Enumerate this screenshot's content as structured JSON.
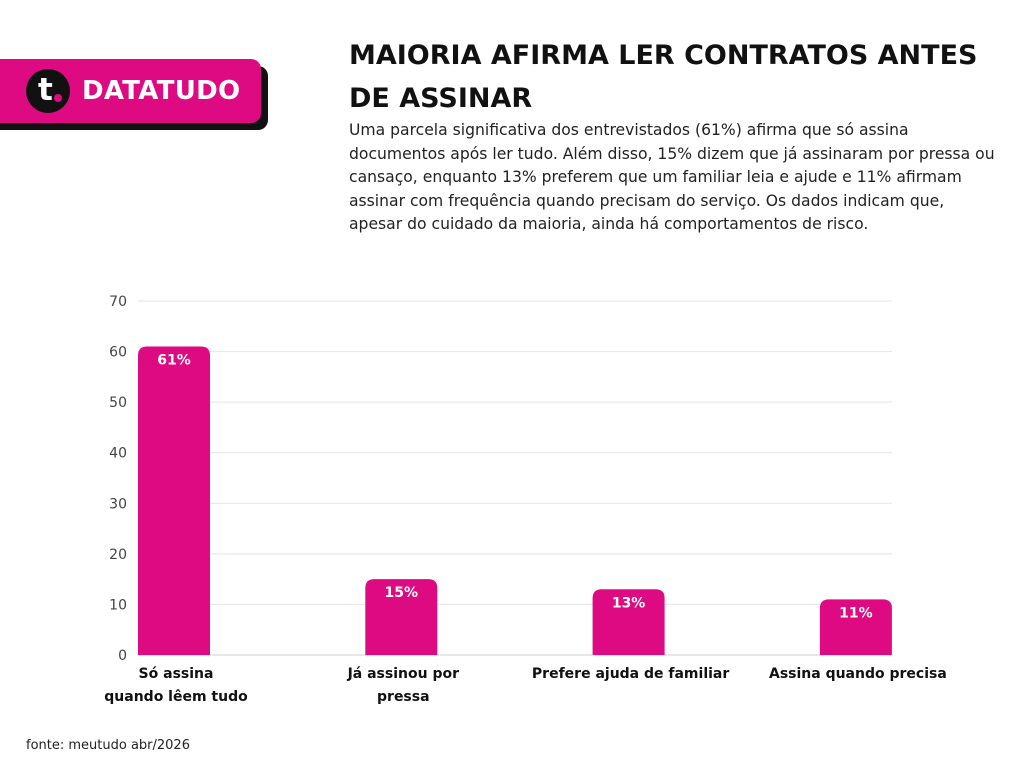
{
  "brand": {
    "name": "DATATUDO",
    "logo_letter": "t",
    "logo_icon": "datatudo-logo-icon",
    "color": "#dd0a82"
  },
  "title": "MAIORIA AFIRMA LER CONTRATOS ANTES DE ASSINAR",
  "description": "Uma parcela significativa dos entrevistados (61%) afirma que só assina documentos após ler tudo. Além disso, 15% dizem que já assinaram por pressa ou cansaço, enquanto 13% preferem que um familiar leia e ajude e 11% afirmam assinar com frequência quando precisam do serviço. Os dados indicam que, apesar do cuidado da maioria, ainda há comportamentos de risco.",
  "source": "fonte: meutudo abr/2026",
  "chart_data": {
    "type": "bar",
    "categories": [
      [
        "Só assina",
        "quando lêem tudo"
      ],
      [
        "Já assinou por",
        "pressa"
      ],
      [
        "Prefere ajuda de familiar"
      ],
      [
        "Assina quando precisa"
      ]
    ],
    "values": [
      61,
      15,
      13,
      11
    ],
    "data_labels": [
      "61%",
      "15%",
      "13%",
      "11%"
    ],
    "ylim": [
      0,
      70
    ],
    "yticks": [
      0,
      10,
      20,
      30,
      40,
      50,
      60,
      70
    ],
    "grid": true,
    "bar_color": "#dd0a82",
    "grid_color": "#e4e4e4",
    "xlabel": "",
    "ylabel": ""
  }
}
